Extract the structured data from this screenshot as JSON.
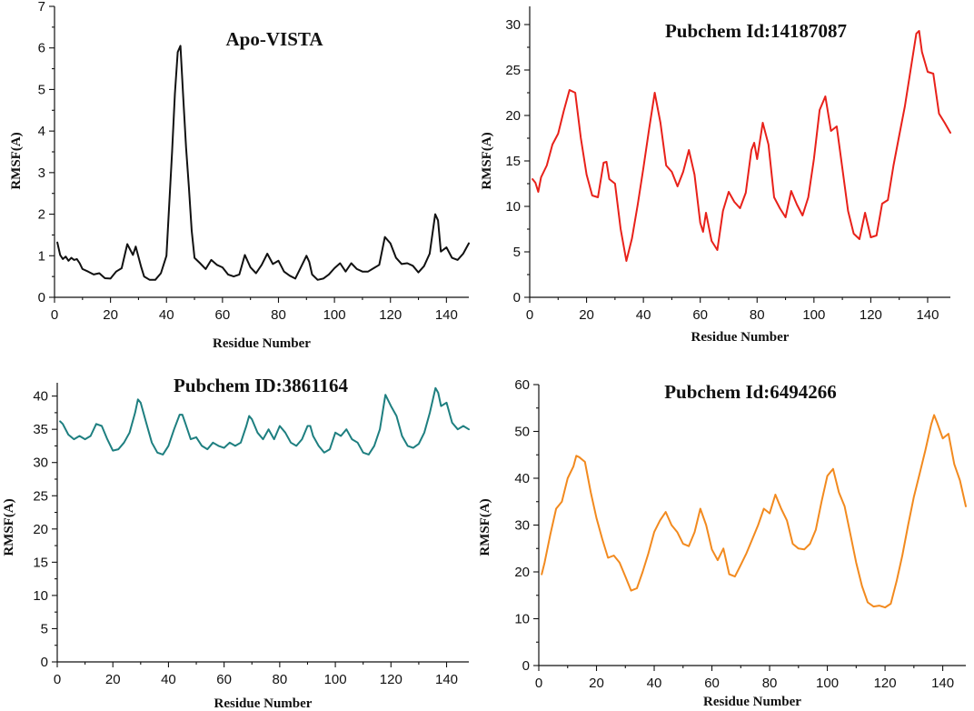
{
  "chart_data": [
    {
      "type": "line",
      "title": "Apo-VISTA",
      "xlabel": "Residue Number",
      "ylabel": "RMSF(A)",
      "xlim": [
        0,
        148
      ],
      "ylim": [
        0,
        7
      ],
      "xticks": [
        0,
        20,
        40,
        60,
        80,
        100,
        120,
        140
      ],
      "yticks": [
        0,
        1,
        2,
        3,
        4,
        5,
        6,
        7
      ],
      "color": "#111111",
      "series": [
        {
          "name": "Apo-VISTA",
          "x": [
            1,
            2,
            3,
            4,
            5,
            6,
            7,
            8,
            9,
            10,
            12,
            14,
            16,
            18,
            20,
            22,
            24,
            26,
            28,
            29,
            31,
            32,
            34,
            36,
            38,
            40,
            42,
            43,
            44,
            45,
            46,
            47,
            48,
            49,
            50,
            52,
            54,
            56,
            58,
            60,
            62,
            64,
            66,
            68,
            70,
            72,
            74,
            76,
            78,
            80,
            82,
            84,
            86,
            88,
            90,
            91,
            92,
            94,
            96,
            98,
            100,
            102,
            104,
            106,
            108,
            110,
            112,
            114,
            116,
            118,
            120,
            122,
            124,
            126,
            128,
            130,
            132,
            134,
            136,
            137,
            138,
            140,
            142,
            144,
            146,
            148
          ],
          "y": [
            1.32,
            1.02,
            0.92,
            0.98,
            0.88,
            0.95,
            0.9,
            0.92,
            0.82,
            0.68,
            0.62,
            0.55,
            0.58,
            0.46,
            0.45,
            0.62,
            0.7,
            1.28,
            1.02,
            1.22,
            0.72,
            0.5,
            0.42,
            0.42,
            0.58,
            1.0,
            3.5,
            4.9,
            5.9,
            6.05,
            4.8,
            3.6,
            2.65,
            1.6,
            0.95,
            0.82,
            0.68,
            0.9,
            0.78,
            0.72,
            0.55,
            0.5,
            0.55,
            1.02,
            0.72,
            0.58,
            0.78,
            1.05,
            0.8,
            0.88,
            0.62,
            0.52,
            0.45,
            0.72,
            1.0,
            0.85,
            0.55,
            0.42,
            0.45,
            0.55,
            0.7,
            0.82,
            0.62,
            0.82,
            0.68,
            0.62,
            0.62,
            0.7,
            0.78,
            1.45,
            1.3,
            0.95,
            0.8,
            0.82,
            0.76,
            0.6,
            0.75,
            1.05,
            2.0,
            1.85,
            1.1,
            1.2,
            0.95,
            0.9,
            1.05,
            1.3
          ]
        }
      ]
    },
    {
      "type": "line",
      "title": "Pubchem Id:14187087",
      "xlabel": "Residue Number",
      "ylabel": "RMSF(A)",
      "xlim": [
        0,
        148
      ],
      "ylim": [
        0,
        32
      ],
      "xticks": [
        0,
        20,
        40,
        60,
        80,
        100,
        120,
        140
      ],
      "yticks": [
        0,
        5,
        10,
        15,
        20,
        25,
        30
      ],
      "color": "#e8211a",
      "series": [
        {
          "name": "Pubchem Id:14187087",
          "x": [
            1,
            2,
            3,
            4,
            6,
            8,
            10,
            12,
            14,
            16,
            18,
            20,
            22,
            24,
            26,
            27,
            28,
            30,
            32,
            34,
            36,
            38,
            40,
            42,
            44,
            46,
            48,
            50,
            52,
            54,
            56,
            58,
            60,
            61,
            62,
            64,
            66,
            68,
            70,
            72,
            74,
            76,
            78,
            79,
            80,
            82,
            84,
            86,
            88,
            90,
            92,
            94,
            96,
            98,
            100,
            102,
            104,
            106,
            108,
            110,
            112,
            114,
            116,
            118,
            120,
            122,
            124,
            126,
            128,
            130,
            132,
            134,
            136,
            137,
            138,
            140,
            142,
            144,
            146,
            148
          ],
          "y": [
            13,
            12.6,
            11.6,
            13.2,
            14.5,
            16.8,
            18,
            20.5,
            22.8,
            22.5,
            17.5,
            13.5,
            11.2,
            11,
            14.8,
            14.9,
            13,
            12.5,
            7.5,
            4,
            6.5,
            10.2,
            14.2,
            18.5,
            22.5,
            19.2,
            14.5,
            13.8,
            12.2,
            13.8,
            16.2,
            13.5,
            8.2,
            7.2,
            9.3,
            6.2,
            5.2,
            9.5,
            11.6,
            10.5,
            9.8,
            11.5,
            16.2,
            17,
            15.2,
            19.2,
            16.8,
            11,
            9.8,
            8.8,
            11.7,
            10.2,
            9,
            11,
            15.2,
            20.6,
            22.1,
            18.3,
            18.8,
            14.2,
            9.5,
            7,
            6.4,
            9.3,
            6.6,
            6.8,
            10.3,
            10.7,
            14.5,
            17.8,
            21,
            25,
            29,
            29.3,
            27,
            24.8,
            24.6,
            20.2,
            19.2,
            18.1
          ]
        }
      ]
    },
    {
      "type": "line",
      "title": "Pubchem ID:3861164",
      "xlabel": "Residue Number",
      "ylabel": "RMSF(A)",
      "xlim": [
        0,
        148
      ],
      "ylim": [
        0,
        42
      ],
      "xticks": [
        0,
        20,
        40,
        60,
        80,
        100,
        120,
        140
      ],
      "yticks": [
        0,
        5,
        10,
        15,
        20,
        25,
        30,
        35,
        40
      ],
      "color": "#1e7f80",
      "series": [
        {
          "name": "Pubchem ID:3861164",
          "x": [
            1,
            2,
            4,
            6,
            8,
            10,
            12,
            14,
            16,
            18,
            20,
            22,
            24,
            26,
            28,
            29,
            30,
            32,
            34,
            36,
            38,
            40,
            42,
            44,
            45,
            46,
            48,
            50,
            52,
            54,
            56,
            58,
            60,
            62,
            64,
            66,
            68,
            69,
            70,
            72,
            74,
            76,
            78,
            80,
            82,
            84,
            86,
            88,
            90,
            91,
            92,
            94,
            96,
            98,
            100,
            102,
            104,
            106,
            108,
            110,
            112,
            114,
            116,
            118,
            120,
            122,
            124,
            126,
            128,
            130,
            132,
            134,
            136,
            137,
            138,
            140,
            142,
            144,
            146,
            148
          ],
          "y": [
            36.2,
            35.8,
            34.2,
            33.5,
            34,
            33.5,
            34,
            35.8,
            35.5,
            33.5,
            31.8,
            32,
            33,
            34.5,
            37.5,
            39.5,
            39,
            36,
            33,
            31.5,
            31.2,
            32.5,
            35,
            37.2,
            37.2,
            36,
            33.5,
            33.8,
            32.5,
            32,
            33,
            32.5,
            32.2,
            33,
            32.5,
            33,
            35.5,
            37,
            36.5,
            34.5,
            33.5,
            35,
            33.5,
            35.5,
            34.5,
            33,
            32.5,
            33.5,
            35.5,
            35.5,
            34,
            32.5,
            31.5,
            32,
            34.5,
            34,
            35,
            33.5,
            33,
            31.5,
            31.2,
            32.5,
            35,
            40.2,
            38.5,
            37,
            34,
            32.5,
            32.2,
            32.8,
            34.5,
            37.5,
            41.2,
            40.5,
            38.5,
            39,
            36,
            35,
            35.5,
            35
          ]
        }
      ]
    },
    {
      "type": "line",
      "title": "Pubchem Id:6494266",
      "xlabel": "Residue Number",
      "ylabel": "RMSF(A)",
      "xlim": [
        0,
        148
      ],
      "ylim": [
        0,
        60
      ],
      "xticks": [
        0,
        20,
        40,
        60,
        80,
        100,
        120,
        140
      ],
      "yticks": [
        0,
        10,
        20,
        30,
        40,
        50,
        60
      ],
      "color": "#f28a1f",
      "series": [
        {
          "name": "Pubchem Id:6494266",
          "x": [
            1,
            2,
            4,
            6,
            8,
            10,
            12,
            13,
            14,
            16,
            18,
            20,
            22,
            24,
            26,
            28,
            30,
            32,
            34,
            36,
            38,
            40,
            42,
            44,
            46,
            48,
            50,
            52,
            54,
            56,
            58,
            60,
            62,
            64,
            66,
            68,
            70,
            72,
            74,
            76,
            78,
            80,
            82,
            84,
            86,
            88,
            90,
            92,
            94,
            96,
            98,
            100,
            102,
            104,
            106,
            108,
            110,
            112,
            114,
            116,
            118,
            120,
            122,
            124,
            126,
            128,
            130,
            132,
            134,
            136,
            137,
            138,
            140,
            142,
            144,
            146,
            148
          ],
          "y": [
            19.5,
            22,
            28,
            33.5,
            35,
            40,
            42.5,
            44.8,
            44.5,
            43.5,
            37,
            31.5,
            27,
            23,
            23.5,
            22,
            19,
            16,
            16.5,
            20,
            24,
            28.5,
            31,
            32.8,
            30,
            28.5,
            26,
            25.5,
            28.5,
            33.5,
            30,
            24.8,
            22.5,
            25,
            19.5,
            19,
            21.5,
            24,
            27,
            30,
            33.5,
            32.5,
            36.5,
            33.5,
            31,
            26,
            25,
            24.8,
            26,
            29,
            35,
            40.5,
            42,
            37,
            34,
            28,
            22,
            17,
            13.5,
            12.6,
            12.8,
            12.4,
            13.2,
            18,
            23.5,
            30,
            36,
            41,
            46,
            51.5,
            53.5,
            52,
            48.5,
            49.5,
            43,
            39.5,
            34
          ]
        }
      ]
    }
  ]
}
